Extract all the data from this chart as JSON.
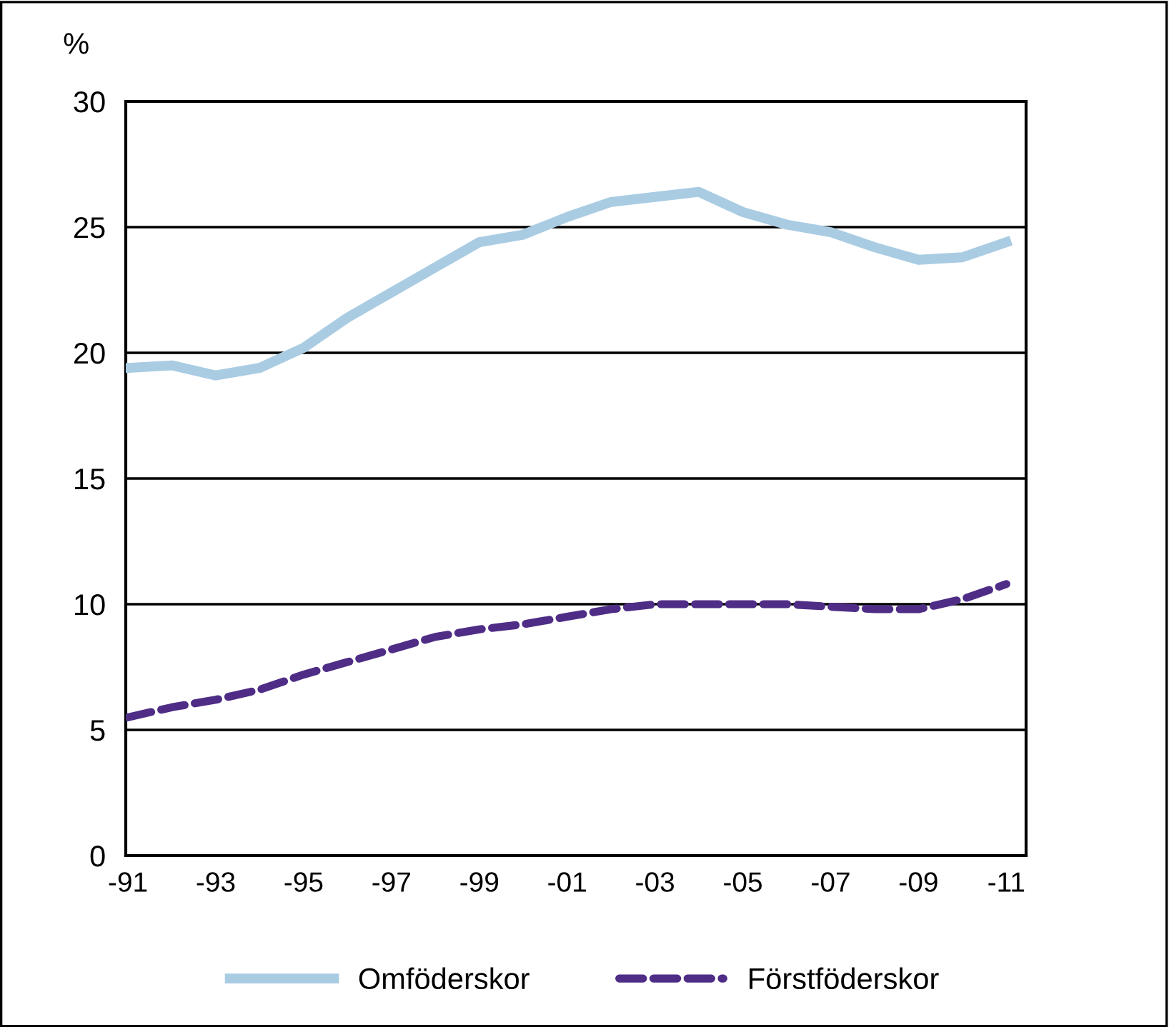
{
  "chart_data": {
    "type": "line",
    "ylabel": "%",
    "categories": [
      "-91",
      null,
      "-93",
      null,
      "-95",
      null,
      "-97",
      null,
      "-99",
      null,
      "-01",
      null,
      "-03",
      null,
      "-05",
      null,
      "-07",
      null,
      "-09",
      null,
      "-11"
    ],
    "series": [
      {
        "name": "Omföderskor",
        "color": "#a9cce3",
        "line_style": "solid",
        "values": [
          19.4,
          19.5,
          19.1,
          19.4,
          20.2,
          21.4,
          22.4,
          23.4,
          24.4,
          24.7,
          25.4,
          26.0,
          26.2,
          26.4,
          25.6,
          25.1,
          24.8,
          24.2,
          23.7,
          23.8,
          24.4
        ]
      },
      {
        "name": "Förstföderskor",
        "color": "#4f2d86",
        "line_style": "dashed",
        "values": [
          5.5,
          5.9,
          6.2,
          6.6,
          7.2,
          7.7,
          8.2,
          8.7,
          9.0,
          9.2,
          9.5,
          9.8,
          10.0,
          10.0,
          10.0,
          10.0,
          9.9,
          9.8,
          9.8,
          10.2,
          10.8
        ]
      }
    ],
    "ylim": [
      0,
      30
    ],
    "yticks": [
      0,
      5,
      10,
      15,
      20,
      25,
      30
    ],
    "grid": "y",
    "legend": "bottom"
  }
}
